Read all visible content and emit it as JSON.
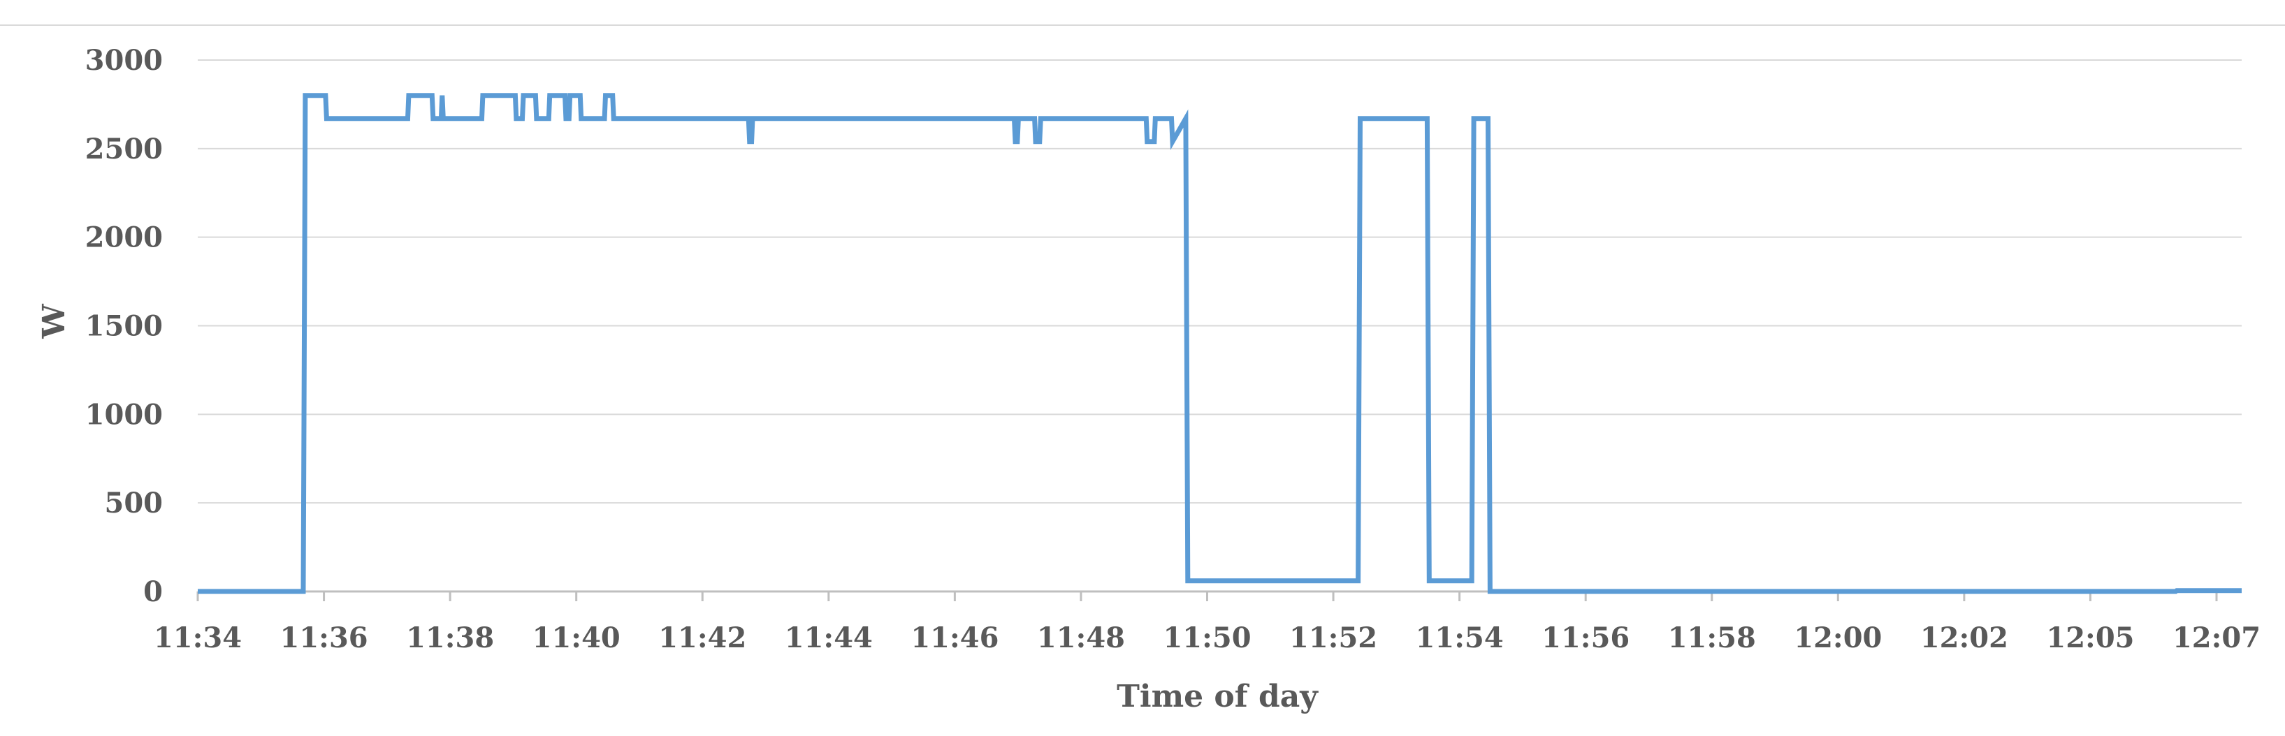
{
  "chart_data": {
    "type": "line",
    "title": "",
    "xlabel": "Time of day",
    "ylabel": "W",
    "ylim": [
      0,
      3000
    ],
    "yticks": [
      0,
      500,
      1000,
      1500,
      2000,
      2500,
      3000
    ],
    "xlim": [
      "11:34",
      "12:07"
    ],
    "xtick_labels": [
      "11:34",
      "11:36",
      "11:38",
      "11:40",
      "11:42",
      "11:44",
      "11:46",
      "11:48",
      "11:50",
      "11:52",
      "11:54",
      "11:56",
      "11:58",
      "12:00",
      "12:02",
      "12:05",
      "12:07"
    ],
    "grid": "horizontal",
    "legend": "none",
    "series_color": "#5b9bd5",
    "series": [
      {
        "x": [
          "11:34:00",
          "11:35:44",
          "11:35:46",
          "11:36:06",
          "11:36:07",
          "11:37:27",
          "11:37:28",
          "11:37:51",
          "11:37:52",
          "11:38:00",
          "11:38:01",
          "11:38:02",
          "11:38:40",
          "11:38:41",
          "11:39:13",
          "11:39:14",
          "11:39:20",
          "11:39:21",
          "11:39:33",
          "11:39:34",
          "11:39:46",
          "11:39:47",
          "11:40:02",
          "11:40:03",
          "11:40:06",
          "11:40:07",
          "11:40:17",
          "11:40:18",
          "11:40:41",
          "11:40:42",
          "11:40:49",
          "11:40:50",
          "11:43:03",
          "11:43:04",
          "11:43:06",
          "11:43:07",
          "11:47:25",
          "11:47:26",
          "11:47:28",
          "11:47:29",
          "11:47:45",
          "11:47:46",
          "11:47:50",
          "11:47:51",
          "11:49:35",
          "11:49:36",
          "11:49:43",
          "11:49:44",
          "11:50:00",
          "11:50:01",
          "11:50:14",
          "11:50:16",
          "11:53:04",
          "11:53:06",
          "11:54:12",
          "11:54:14",
          "11:54:56",
          "11:54:58",
          "11:55:12",
          "11:55:14",
          "12:06:30",
          "12:06:31",
          "12:07:35"
        ],
        "y": [
          0,
          0,
          2800,
          2800,
          2670,
          2670,
          2800,
          2800,
          2670,
          2670,
          2800,
          2670,
          2670,
          2800,
          2800,
          2670,
          2670,
          2800,
          2800,
          2670,
          2670,
          2800,
          2800,
          2670,
          2670,
          2800,
          2800,
          2670,
          2670,
          2800,
          2800,
          2670,
          2670,
          2540,
          2540,
          2670,
          2670,
          2540,
          2540,
          2670,
          2670,
          2540,
          2540,
          2670,
          2670,
          2540,
          2540,
          2670,
          2670,
          2540,
          2670,
          60,
          60,
          2670,
          2670,
          60,
          60,
          2670,
          2670,
          0,
          0,
          5,
          5
        ]
      }
    ]
  }
}
